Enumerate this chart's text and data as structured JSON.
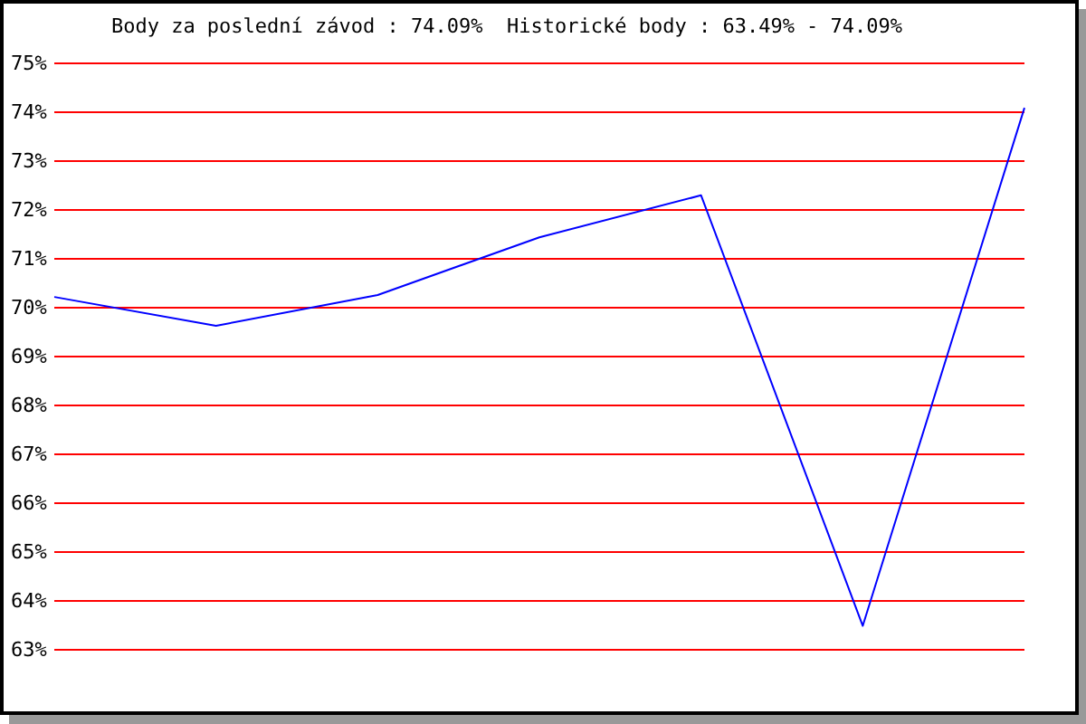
{
  "chart_data": {
    "type": "line",
    "title": "Body za poslední závod : 74.09%  Historické body : 63.49% - 74.09%",
    "categories": [
      null,
      null,
      null,
      null,
      null,
      null,
      null
    ],
    "series": [
      {
        "color": "#0000ff",
        "values": [
          70.22,
          69.63,
          70.26,
          71.44,
          72.3,
          63.49,
          74.09
        ]
      }
    ],
    "ylim": [
      63,
      75
    ],
    "yticks": [
      {
        "value": 63,
        "label": "63%"
      },
      {
        "value": 64,
        "label": "64%"
      },
      {
        "value": 65,
        "label": "65%"
      },
      {
        "value": 66,
        "label": "66%"
      },
      {
        "value": 67,
        "label": "67%"
      },
      {
        "value": 68,
        "label": "68%"
      },
      {
        "value": 69,
        "label": "69%"
      },
      {
        "value": 70,
        "label": "70%"
      },
      {
        "value": 71,
        "label": "71%"
      },
      {
        "value": 72,
        "label": "72%"
      },
      {
        "value": 73,
        "label": "73%"
      },
      {
        "value": 74,
        "label": "74%"
      },
      {
        "value": 75,
        "label": "75%"
      }
    ],
    "grid": "y",
    "tick_labels": "y",
    "marker": "none",
    "line_style": "solid"
  }
}
